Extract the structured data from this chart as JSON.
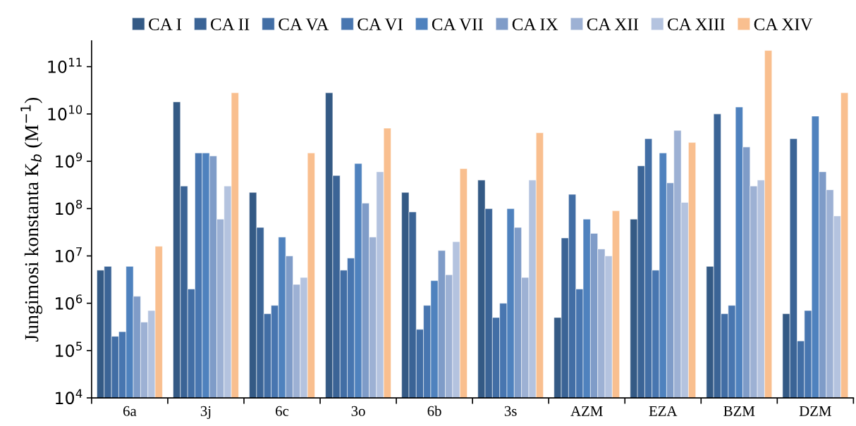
{
  "chart_data": {
    "type": "bar",
    "ylabel": "Jungimosi konstanta K$_{b}$ (M$^{−1}$)",
    "categories": [
      "6a",
      "3j",
      "6c",
      "3o",
      "6b",
      "3s",
      "AZM",
      "EZA",
      "BZM",
      "DZM"
    ],
    "log": "y",
    "grid": false,
    "legend": "top",
    "ylim": [
      10000,
      350000000000
    ],
    "yticks": [
      {
        "value": 10000,
        "label": "10$^{4}$"
      },
      {
        "value": 100000,
        "label": "10$^{5}$"
      },
      {
        "value": 1000000,
        "label": "10$^{6}$"
      },
      {
        "value": 10000000,
        "label": "10$^{7}$"
      },
      {
        "value": 100000000,
        "label": "10$^{8}$"
      },
      {
        "value": 1000000000,
        "label": "10$^{9}$"
      },
      {
        "value": 10000000000,
        "label": "10$^{10}$"
      },
      {
        "value": 100000000000,
        "label": "10$^{11}$"
      }
    ],
    "series": [
      {
        "name": "CA I",
        "color": "#345a85",
        "values": [
          5000000.0,
          18000000000.0,
          220000000.0,
          28000000000.0,
          220000000.0,
          400000000.0,
          500000.0,
          60000000.0,
          6000000.0,
          600000.0
        ]
      },
      {
        "name": "CA II",
        "color": "#3b6496",
        "values": [
          6000000.0,
          300000000.0,
          40000000.0,
          500000000.0,
          85000000.0,
          100000000.0,
          24000000.0,
          800000000.0,
          10000000000.0,
          3000000000.0
        ]
      },
      {
        "name": "CA VA",
        "color": "#426ea5",
        "values": [
          200000.0,
          2000000.0,
          600000.0,
          5000000.0,
          280000.0,
          500000.0,
          200000000.0,
          3000000000.0,
          600000.0,
          160000.0
        ]
      },
      {
        "name": "CA VI",
        "color": "#4876b0",
        "values": [
          250000.0,
          1500000000.0,
          900000.0,
          9000000.0,
          900000.0,
          1000000.0,
          2000000.0,
          5000000.0,
          900000.0,
          700000.0
        ]
      },
      {
        "name": "CA VII",
        "color": "#4f82be",
        "values": [
          6000000.0,
          1500000000.0,
          25000000.0,
          900000000.0,
          3000000.0,
          100000000.0,
          60000000.0,
          1500000000.0,
          14000000000.0,
          9000000000.0
        ]
      },
      {
        "name": "CA IX",
        "color": "#7f9cc8",
        "values": [
          1400000.0,
          1300000000.0,
          10000000.0,
          130000000.0,
          13000000.0,
          40000000.0,
          30000000.0,
          350000000.0,
          2000000000.0,
          600000000.0
        ]
      },
      {
        "name": "CA XII",
        "color": "#9db1d4",
        "values": [
          400000.0,
          60000000.0,
          2500000.0,
          25000000.0,
          4000000.0,
          3500000.0,
          14000000.0,
          4500000000.0,
          300000000.0,
          250000000.0
        ]
      },
      {
        "name": "CA XIII",
        "color": "#b4c3df",
        "values": [
          700000.0,
          300000000.0,
          3500000.0,
          600000000.0,
          20000000.0,
          400000000.0,
          10000000.0,
          135000000.0,
          400000000.0,
          70000000.0
        ]
      },
      {
        "name": "CA XIV",
        "color": "#f9bf8f",
        "values": [
          16000000.0,
          28000000000.0,
          1500000000.0,
          5000000000.0,
          700000000.0,
          4000000000.0,
          90000000.0,
          2500000000.0,
          220000000000.0,
          28000000000.0
        ]
      }
    ]
  }
}
